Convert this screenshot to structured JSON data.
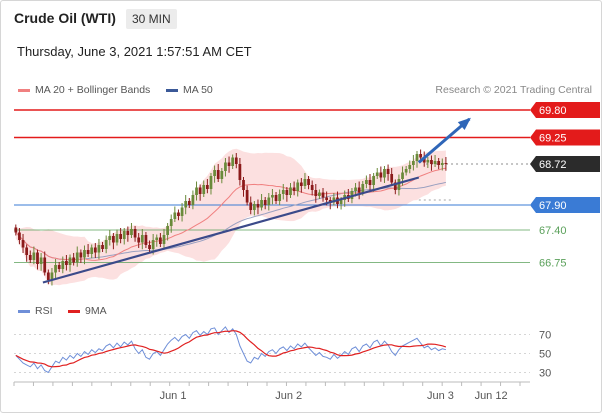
{
  "header": {
    "title": "Crude Oil (WTI)",
    "timeframe": "30 MIN",
    "timestamp": "Thursday, June 3, 2021 1:57:51 AM CET",
    "credit": "Research © 2021 Trading Central"
  },
  "legend_top": [
    {
      "label": "MA 20 + Bollinger Bands",
      "color": "#f08080"
    },
    {
      "label": "MA 50",
      "color": "#3b5998"
    }
  ],
  "legend_bottom": [
    {
      "label": "RSI",
      "color": "#6f8fd8"
    },
    {
      "label": "9MA",
      "color": "#e02020"
    }
  ],
  "colors": {
    "bull": "#6a8a3a",
    "bear": "#8b1a1a",
    "resistance": "#e31b1b",
    "support": "#3a7bd5",
    "minor": "#5aa05a",
    "trend": "#3b4a8a",
    "bollinger": "#fbd6d6",
    "ma20": "#f08080",
    "ma50": "#9aa0c0",
    "arrow": "#2f66b8"
  },
  "chart_data": {
    "type": "candlestick",
    "ylim": [
      66.2,
      70.0
    ],
    "xlim": [
      0,
      140
    ],
    "x_ticks": [
      {
        "label": "Jun 1",
        "x": 44
      },
      {
        "label": "Jun 2",
        "x": 76
      },
      {
        "label": "Jun 3",
        "x": 118
      },
      {
        "label": "Jun 12",
        "x": 132
      }
    ],
    "levels": [
      {
        "label": "69.80",
        "value": 69.8,
        "style": "resistance"
      },
      {
        "label": "69.25",
        "value": 69.25,
        "style": "resistance"
      },
      {
        "label": "68.72",
        "value": 68.72,
        "style": "current"
      },
      {
        "label": "67.90",
        "value": 67.9,
        "style": "support"
      },
      {
        "label": "67.40",
        "value": 67.4,
        "style": "minor"
      },
      {
        "label": "66.75",
        "value": 66.75,
        "style": "minor"
      }
    ],
    "closes": [
      67.35,
      67.2,
      67.05,
      66.9,
      66.8,
      66.95,
      66.72,
      66.85,
      66.55,
      66.4,
      66.55,
      66.7,
      66.62,
      66.78,
      66.7,
      66.85,
      66.75,
      66.95,
      66.85,
      67.0,
      66.92,
      67.05,
      66.95,
      67.1,
      67.02,
      67.2,
      67.28,
      67.15,
      67.32,
      67.22,
      67.38,
      67.3,
      67.42,
      67.25,
      67.15,
      67.3,
      67.1,
      67.02,
      67.2,
      67.25,
      67.12,
      67.3,
      67.48,
      67.62,
      67.75,
      67.68,
      67.85,
      67.98,
      67.9,
      68.1,
      68.25,
      68.12,
      68.3,
      68.22,
      68.48,
      68.6,
      68.42,
      68.58,
      68.75,
      68.68,
      68.85,
      68.72,
      68.4,
      68.2,
      67.95,
      67.8,
      67.92,
      67.85,
      68.0,
      67.9,
      68.05,
      68.1,
      67.98,
      68.12,
      68.2,
      68.1,
      68.25,
      68.18,
      68.35,
      68.28,
      68.42,
      68.3,
      68.2,
      68.08,
      68.15,
      68.05,
      68.0,
      67.95,
      68.05,
      67.92,
      68.0,
      68.1,
      68.02,
      68.18,
      68.25,
      68.15,
      68.32,
      68.4,
      68.3,
      68.48,
      68.55,
      68.45,
      68.62,
      68.52,
      68.35,
      68.2,
      68.42,
      68.55,
      68.62,
      68.7,
      68.78,
      68.92,
      68.85,
      68.75,
      68.8,
      68.72,
      68.78,
      68.7,
      68.74,
      68.72
    ],
    "rsi": {
      "axis_ticks": [
        70,
        50,
        30
      ],
      "ylim": [
        20,
        80
      ],
      "rsi": [
        48,
        44,
        40,
        38,
        36,
        40,
        34,
        38,
        32,
        30,
        36,
        42,
        40,
        46,
        43,
        48,
        45,
        50,
        47,
        52,
        49,
        54,
        51,
        55,
        53,
        58,
        60,
        56,
        61,
        57,
        62,
        59,
        63,
        55,
        50,
        54,
        46,
        44,
        50,
        52,
        48,
        54,
        60,
        64,
        67,
        63,
        68,
        70,
        66,
        72,
        74,
        69,
        73,
        70,
        76,
        77,
        70,
        74,
        78,
        72,
        76,
        70,
        58,
        50,
        42,
        40,
        46,
        44,
        50,
        47,
        52,
        54,
        50,
        55,
        57,
        53,
        58,
        55,
        60,
        57,
        61,
        56,
        52,
        48,
        51,
        47,
        46,
        44,
        49,
        45,
        48,
        52,
        49,
        55,
        57,
        52,
        58,
        60,
        56,
        62,
        64,
        58,
        63,
        59,
        52,
        48,
        54,
        58,
        60,
        62,
        64,
        66,
        61,
        56,
        58,
        54,
        56,
        53,
        55,
        54
      ],
      "ma9_period": 9
    },
    "ma20_period": 20,
    "ma50_period": 50,
    "trendline": {
      "from": [
        8,
        66.35
      ],
      "to": [
        112,
        68.45
      ]
    },
    "arrow": {
      "from": [
        112,
        68.75
      ],
      "to": [
        126,
        69.62
      ]
    }
  }
}
